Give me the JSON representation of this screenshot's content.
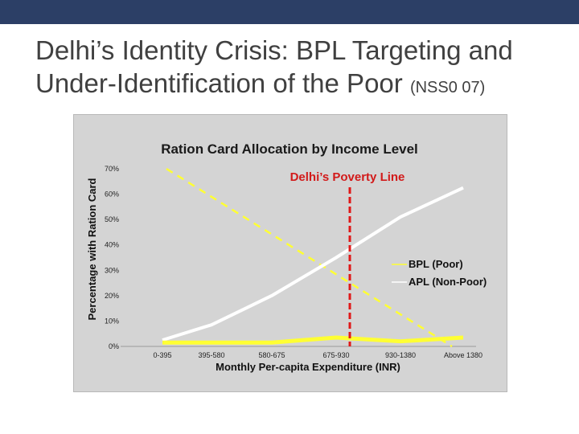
{
  "slide": {
    "title_main": "Delhi’s Identity Crisis: BPL Targeting and Under-Identification of the Poor",
    "title_suffix": "(NSS0 07)",
    "colors": {
      "topbar": "#2c3f66",
      "panel": "#d4d4d4"
    }
  },
  "chart_data": {
    "type": "line",
    "title": "Ration Card Allocation by Income Level",
    "xlabel": "Monthly Per-capita  Expenditure (INR)",
    "ylabel": "Percentage with Ration Card",
    "categories": [
      "0-395",
      "395-580",
      "580-675",
      "675-930",
      "930-1380",
      "Above 1380"
    ],
    "ylim": [
      0,
      70
    ],
    "yticks": [
      "0%",
      "10%",
      "20%",
      "30%",
      "40%",
      "50%",
      "60%",
      "70%"
    ],
    "series": [
      {
        "name": "BPL (Poor)",
        "color": "#ffff33",
        "values": [
          1.5,
          1.5,
          1.5,
          3.5,
          2.0,
          3.5
        ]
      },
      {
        "name": "APL (Non-Poor)",
        "color": "#ffffff",
        "values": [
          2.5,
          8.5,
          20.0,
          35.0,
          51.0,
          62.5
        ]
      }
    ],
    "annotations": {
      "poverty_line_label": "Delhi’s Poverty Line",
      "poverty_line_color": "#e01818",
      "trend_color": "#ffff33"
    },
    "grid": false,
    "legend_position": "right"
  }
}
